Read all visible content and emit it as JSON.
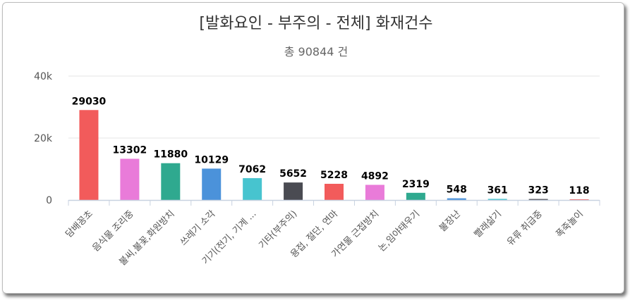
{
  "chart_data": {
    "type": "bar",
    "title": "[발화요인 - 부주의 - 전체] 화재건수",
    "subtitle": "총 90844 건",
    "xlabel": "",
    "ylabel": "",
    "ylim": [
      0,
      40000
    ],
    "y_ticks": [
      {
        "value": 0,
        "label": "0"
      },
      {
        "value": 20000,
        "label": "20k"
      },
      {
        "value": 40000,
        "label": "40k"
      }
    ],
    "grid": true,
    "legend": "none",
    "categories": [
      "담배꽁초",
      "음식물 조리중",
      "불씨,불꽃,화원방치",
      "쓰레기 소각",
      "기기(전기, 기계 ...",
      "기타(부주의)",
      "용접, 절단, 연마",
      "가연물 근접방치",
      "논,임야태우기",
      "불장난",
      "빨래삶기",
      "유류 취급중",
      "폭죽놀이"
    ],
    "values": [
      29030,
      13302,
      11880,
      10129,
      7062,
      5652,
      5228,
      4892,
      2319,
      548,
      361,
      323,
      118
    ],
    "colors": [
      "#f25b5b",
      "#e97bd9",
      "#2fa98f",
      "#4b92da",
      "#47c4cf",
      "#4a4b52",
      "#f25b5b",
      "#e97bd9",
      "#2fa98f",
      "#4b92da",
      "#47c4cf",
      "#4a4b52",
      "#f25b5b"
    ]
  }
}
